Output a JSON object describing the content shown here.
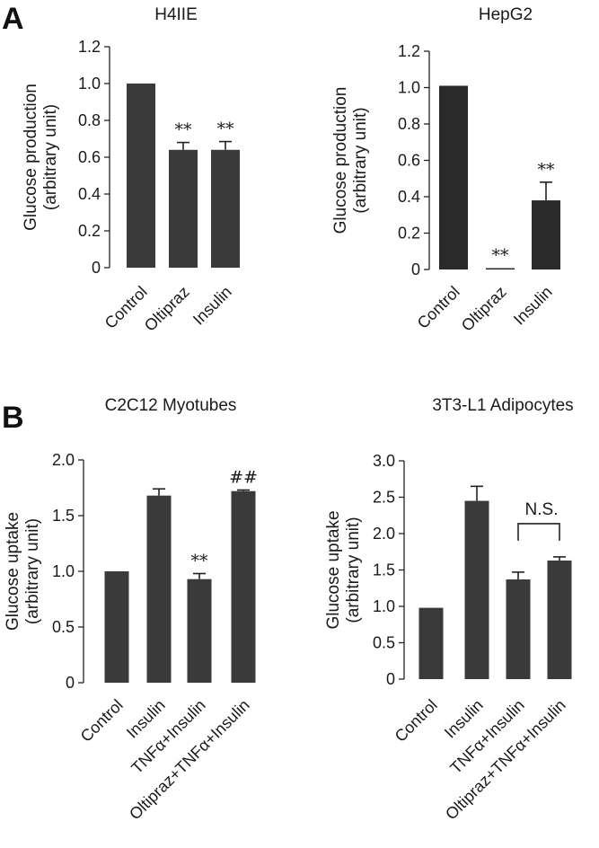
{
  "panels": [
    {
      "letter": "A"
    },
    {
      "letter": "B"
    }
  ],
  "chart_data": [
    {
      "type": "bar",
      "panel": "A",
      "title": "H4IIE",
      "ylabel": [
        "Glucose production",
        "(arbitrary unit)"
      ],
      "categories": [
        "Control",
        "Oltipraz",
        "Insulin"
      ],
      "values": [
        1.0,
        0.64,
        0.64
      ],
      "errors": [
        0,
        0.04,
        0.045
      ],
      "annotations": [
        "",
        "**",
        "**"
      ],
      "ylim": [
        0,
        1.2
      ],
      "yticks": [
        0,
        0.2,
        0.4,
        0.6,
        0.8,
        1.0,
        1.2
      ],
      "ytick_labels": [
        "0",
        "0.2",
        "0.4",
        "0.6",
        "0.8",
        "1.0",
        "1.2"
      ],
      "grid": false,
      "bar_color": "#3a3a3a"
    },
    {
      "type": "bar",
      "panel": "A",
      "title": "HepG2",
      "ylabel": [
        "Glucose production",
        "(arbitrary unit)"
      ],
      "categories": [
        "Control",
        "Oltipraz",
        "Insulin"
      ],
      "values": [
        1.01,
        0.005,
        0.38
      ],
      "errors": [
        0,
        0.002,
        0.1
      ],
      "annotations": [
        "",
        "**",
        "**"
      ],
      "ylim": [
        0,
        1.2
      ],
      "yticks": [
        0,
        0.2,
        0.4,
        0.6,
        0.8,
        1.0,
        1.2
      ],
      "ytick_labels": [
        "0",
        "0.2",
        "0.4",
        "0.6",
        "0.8",
        "1.0",
        "1.2"
      ],
      "grid": false,
      "bar_color": "#2a2a2a"
    },
    {
      "type": "bar",
      "panel": "B",
      "title": "C2C12 Myotubes",
      "ylabel": [
        "Glucose uptake",
        "(arbitrary unit)"
      ],
      "categories": [
        "Control",
        "Insulin",
        "TNFα+Insulin",
        "Oltipraz+TNFα+Insulin"
      ],
      "values": [
        1.0,
        1.68,
        0.93,
        1.72
      ],
      "errors": [
        0,
        0.06,
        0.05,
        0.01
      ],
      "annotations": [
        "",
        "",
        "**",
        "##"
      ],
      "ylim": [
        0,
        2.0
      ],
      "yticks": [
        0,
        0.5,
        1.0,
        1.5,
        2.0
      ],
      "ytick_labels": [
        "0",
        "0.5",
        "1.0",
        "1.5",
        "2.0"
      ],
      "grid": false,
      "bar_color": "#3a3a3a"
    },
    {
      "type": "bar",
      "panel": "B",
      "title": "3T3-L1 Adipocytes",
      "ylabel": [
        "Glucose uptake",
        "(arbitrary unit)"
      ],
      "categories": [
        "Control",
        "Insulin",
        "TNFα+Insulin",
        "Oltipraz+TNFα+Insulin"
      ],
      "values": [
        0.98,
        2.45,
        1.37,
        1.63
      ],
      "errors": [
        0,
        0.2,
        0.1,
        0.05
      ],
      "annotations": [
        "",
        "",
        "",
        ""
      ],
      "bracket": {
        "from": 2,
        "to": 3,
        "label": "N.S."
      },
      "ylim": [
        0,
        3.0
      ],
      "yticks": [
        0,
        0.5,
        1.0,
        1.5,
        2.0,
        2.5,
        3.0
      ],
      "ytick_labels": [
        "0",
        "0.5",
        "1.0",
        "1.5",
        "2.0",
        "2.5",
        "3.0"
      ],
      "grid": false,
      "bar_color": "#3a3a3a"
    }
  ]
}
